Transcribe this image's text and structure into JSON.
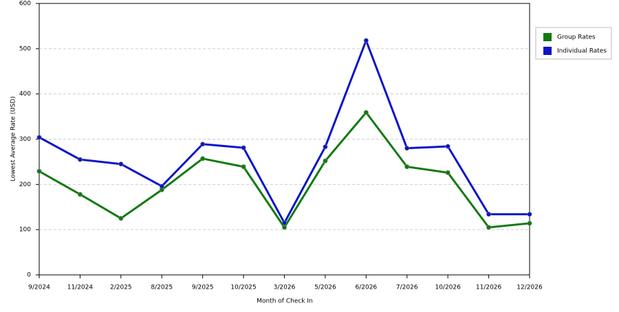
{
  "chart_data": {
    "type": "line",
    "x_label": "Month of Check In",
    "y_label": "Lowest Average Rate (USD)",
    "categories": [
      "9/2024",
      "11/2024",
      "2/2025",
      "8/2025",
      "9/2025",
      "10/2025",
      "3/2026",
      "5/2026",
      "6/2026",
      "7/2026",
      "10/2026",
      "11/2026",
      "12/2026"
    ],
    "series": [
      {
        "name": "Group Rates",
        "color": "#107a10",
        "values": [
          229,
          178,
          125,
          188,
          257,
          239,
          105,
          252,
          359,
          239,
          226,
          105,
          114
        ]
      },
      {
        "name": "Individual Rates",
        "color": "#0a14c8",
        "values": [
          304,
          255,
          245,
          196,
          289,
          281,
          115,
          283,
          518,
          280,
          284,
          134,
          134
        ]
      }
    ],
    "ylim": [
      0,
      600
    ],
    "yticks": [
      0,
      100,
      200,
      300,
      400,
      500,
      600
    ],
    "grid": true,
    "legend": "right"
  }
}
